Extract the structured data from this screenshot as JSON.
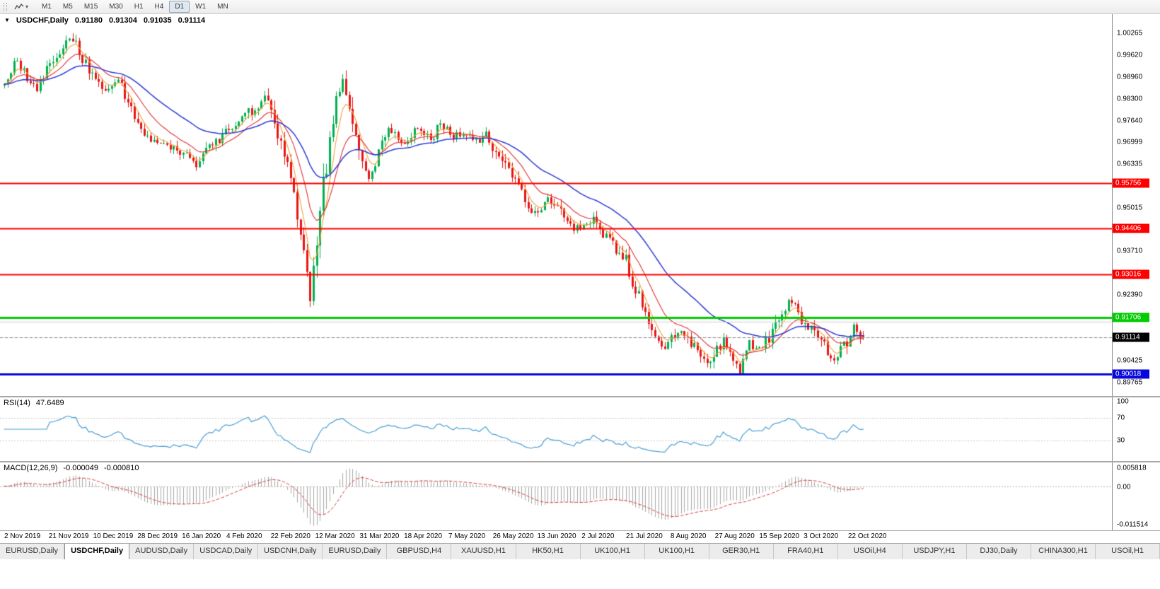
{
  "toolbar": {
    "timeframes": [
      "M1",
      "M5",
      "M15",
      "M30",
      "H1",
      "H4",
      "D1",
      "W1",
      "MN"
    ],
    "active": "D1",
    "dropdown_glyph": "▾"
  },
  "chart_header": {
    "dropdown_glyph": "▼",
    "symbol": "USDCHF,Daily",
    "open": "0.91180",
    "high": "0.91304",
    "low": "0.91035",
    "close": "0.91114"
  },
  "price_axis": {
    "min": 0.8935,
    "max": 1.0085,
    "ticks": [
      {
        "label": "1.00265",
        "value": 1.00265
      },
      {
        "label": "0.99620",
        "value": 0.9962
      },
      {
        "label": "0.98960",
        "value": 0.9896
      },
      {
        "label": "0.98300",
        "value": 0.983
      },
      {
        "label": "0.97640",
        "value": 0.9764
      },
      {
        "label": "0.96999",
        "value": 0.96999
      },
      {
        "label": "0.96335",
        "value": 0.96335
      },
      {
        "label": "0.95015",
        "value": 0.95015
      },
      {
        "label": "0.93710",
        "value": 0.9371
      },
      {
        "label": "0.92390",
        "value": 0.9239
      },
      {
        "label": "0.90425",
        "value": 0.90425
      },
      {
        "label": "0.89765",
        "value": 0.89765
      }
    ]
  },
  "levels": [
    {
      "label": "0.95756",
      "value": 0.95756,
      "color": "#fe0000",
      "width": 2
    },
    {
      "label": "0.94406",
      "value": 0.94406,
      "color": "#fe0000",
      "width": 2
    },
    {
      "label": "0.93016",
      "value": 0.93016,
      "color": "#fe0000",
      "width": 2
    },
    {
      "label": "0.91706",
      "value": 0.91706,
      "color": "#00cc00",
      "width": 3
    },
    {
      "label": "0.90018",
      "value": 0.90018,
      "color": "#0808dc",
      "width": 3
    },
    {
      "label": null,
      "value": 0.9158,
      "color": "#cfcfcf",
      "width": 1
    }
  ],
  "current_price": {
    "label": "0.91114",
    "value": 0.91114,
    "badge_color": "#000000"
  },
  "dates": [
    "2 Nov 2019",
    "21 Nov 2019",
    "10 Dec 2019",
    "28 Dec 2019",
    "16 Jan 2020",
    "4 Feb 2020",
    "22 Feb 2020",
    "12 Mar 2020",
    "31 Mar 2020",
    "18 Apr 2020",
    "7 May 2020",
    "26 May 2020",
    "13 Jun 2020",
    "2 Jul 2020",
    "21 Jul 2020",
    "8 Aug 2020",
    "27 Aug 2020",
    "15 Sep 2020",
    "3 Oct 2020",
    "22 Oct 2020"
  ],
  "rsi_panel": {
    "name": "RSI(14)",
    "value": "47.6489",
    "upper": 70,
    "lower": 30,
    "axis_labels": [
      {
        "label": "100",
        "value": 100
      },
      {
        "label": "70",
        "value": 70
      },
      {
        "label": "30",
        "value": 30
      }
    ]
  },
  "macd_panel": {
    "name": "MACD(12,26,9)",
    "value_main": "-0.000049",
    "value_signal": "-0.000810",
    "axis_top": "0.005818",
    "axis_zero": "0.00",
    "axis_bottom": "-0.011514",
    "scale_max": 0.0058,
    "scale_min": -0.0115
  },
  "tabs": {
    "active_index": 1,
    "items": [
      "EURUSD,Daily",
      "USDCHF,Daily",
      "AUDUSD,Daily",
      "USDCAD,Daily",
      "USDCNH,Daily",
      "EURUSD,Daily",
      "GBPUSD,H4",
      "XAUUSD,H1",
      "HK50,H1",
      "UK100,H1",
      "UK100,H1",
      "GER30,H1",
      "FRA40,H1",
      "USOil,H4",
      "USDJPY,H1",
      "DJ30,Daily",
      "CHINA300,H1",
      "USOil,H1"
    ]
  },
  "colors": {
    "up": "#00b050",
    "down": "#ea1414",
    "ma_fast": "#f2a33c",
    "ma_mid": "#e03030",
    "ma_slow": "#2e3bd7",
    "rsi_line": "#4a9fd4",
    "rsi_level": "#c8c8c8",
    "macd_hist": "#a8a8a8",
    "macd_signal": "#d94040",
    "axis_text": "#000000",
    "panel_border": "#a8a8a8"
  },
  "chart_data": {
    "type": "candlestick",
    "symbol": "USDCHF",
    "timeframe": "Daily",
    "title": "USDCHF,Daily 0.91180 0.91304 0.91035 0.91114",
    "x_tick_labels": [
      "2 Nov 2019",
      "21 Nov 2019",
      "10 Dec 2019",
      "28 Dec 2019",
      "16 Jan 2020",
      "4 Feb 2020",
      "22 Feb 2020",
      "12 Mar 2020",
      "31 Mar 2020",
      "18 Apr 2020",
      "7 May 2020",
      "26 May 2020",
      "13 Jun 2020",
      "2 Jul 2020",
      "21 Jul 2020",
      "8 Aug 2020",
      "27 Aug 2020",
      "15 Sep 2020",
      "3 Oct 2020",
      "22 Oct 2020"
    ],
    "ylim": [
      0.8935,
      1.0085
    ],
    "candle_count": 265,
    "last_ohlc": {
      "open": 0.9118,
      "high": 0.91304,
      "low": 0.91035,
      "close": 0.91114
    },
    "price_path_anchors": [
      [
        0,
        0.987
      ],
      [
        3,
        0.9945
      ],
      [
        7,
        0.9895
      ],
      [
        10,
        0.9862
      ],
      [
        14,
        0.9935
      ],
      [
        18,
        0.999
      ],
      [
        21,
        1.0012
      ],
      [
        25,
        0.994
      ],
      [
        27,
        0.9902
      ],
      [
        31,
        0.9856
      ],
      [
        35,
        0.988
      ],
      [
        38,
        0.9822
      ],
      [
        41,
        0.9748
      ],
      [
        45,
        0.9702
      ],
      [
        50,
        0.9688
      ],
      [
        55,
        0.9662
      ],
      [
        59,
        0.9636
      ],
      [
        63,
        0.9676
      ],
      [
        68,
        0.973
      ],
      [
        73,
        0.9772
      ],
      [
        78,
        0.9812
      ],
      [
        80,
        0.984
      ],
      [
        82,
        0.9782
      ],
      [
        85,
        0.97
      ],
      [
        88,
        0.9598
      ],
      [
        90,
        0.95
      ],
      [
        92,
        0.9352
      ],
      [
        94,
        0.9222
      ],
      [
        96,
        0.942
      ],
      [
        98,
        0.956
      ],
      [
        100,
        0.97
      ],
      [
        102,
        0.9828
      ],
      [
        104,
        0.9878
      ],
      [
        107,
        0.9752
      ],
      [
        109,
        0.9652
      ],
      [
        112,
        0.9582
      ],
      [
        115,
        0.9662
      ],
      [
        118,
        0.9742
      ],
      [
        123,
        0.97
      ],
      [
        127,
        0.9746
      ],
      [
        131,
        0.9702
      ],
      [
        134,
        0.976
      ],
      [
        137,
        0.9716
      ],
      [
        141,
        0.9732
      ],
      [
        145,
        0.97
      ],
      [
        148,
        0.9724
      ],
      [
        150,
        0.9692
      ],
      [
        154,
        0.9622
      ],
      [
        158,
        0.9562
      ],
      [
        161,
        0.9512
      ],
      [
        164,
        0.9482
      ],
      [
        167,
        0.9532
      ],
      [
        170,
        0.9502
      ],
      [
        173,
        0.9452
      ],
      [
        177,
        0.9432
      ],
      [
        181,
        0.9462
      ],
      [
        184,
        0.9422
      ],
      [
        187,
        0.9392
      ],
      [
        191,
        0.9342
      ],
      [
        194,
        0.9252
      ],
      [
        197,
        0.9182
      ],
      [
        200,
        0.9132
      ],
      [
        203,
        0.9082
      ],
      [
        205,
        0.9112
      ],
      [
        208,
        0.9142
      ],
      [
        211,
        0.9092
      ],
      [
        214,
        0.9052
      ],
      [
        216,
        0.9022
      ],
      [
        218,
        0.9062
      ],
      [
        221,
        0.9102
      ],
      [
        224,
        0.9052
      ],
      [
        226,
        0.9012
      ],
      [
        229,
        0.9088
      ],
      [
        232,
        0.9082
      ],
      [
        235,
        0.9112
      ],
      [
        238,
        0.9162
      ],
      [
        241,
        0.9222
      ],
      [
        244,
        0.9182
      ],
      [
        246,
        0.9152
      ],
      [
        249,
        0.9132
      ],
      [
        252,
        0.9082
      ],
      [
        255,
        0.9052
      ],
      [
        258,
        0.9082
      ],
      [
        259,
        0.9102
      ],
      [
        261,
        0.9152
      ],
      [
        263,
        0.9125
      ],
      [
        264,
        0.91114
      ]
    ],
    "moving_averages": [
      {
        "period": 5,
        "color_key": "ma_fast"
      },
      {
        "period": 13,
        "color_key": "ma_mid"
      },
      {
        "period": 34,
        "color_key": "ma_slow"
      }
    ],
    "horizontal_levels": [
      0.95756,
      0.94406,
      0.93016,
      0.91706,
      0.90018
    ],
    "indicators": [
      {
        "name": "RSI",
        "period": 14,
        "current": 47.6489,
        "levels": [
          30,
          70
        ]
      },
      {
        "name": "MACD",
        "fast": 12,
        "slow": 26,
        "signal": 9,
        "current_main": -4.9e-05,
        "current_signal": -0.00081,
        "axis": [
          0.005818,
          0,
          -0.011514
        ]
      }
    ]
  }
}
